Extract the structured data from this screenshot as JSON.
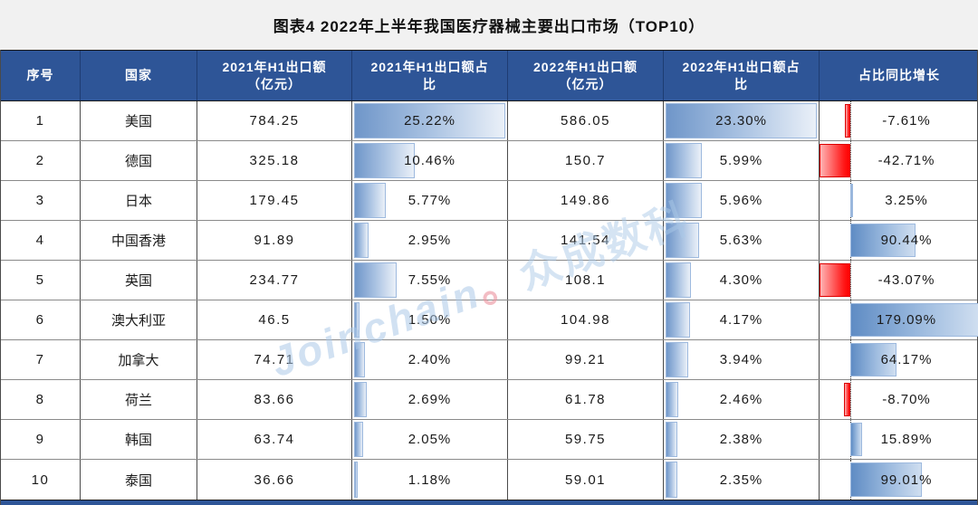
{
  "title": "图表4  2022年上半年我国医疗器械主要出口市场（TOP10）",
  "watermark": {
    "latin": "Joinchain",
    "separator": "。",
    "cjk": "众成数科"
  },
  "colors": {
    "header_bg": "#2e5597",
    "header_text": "#ffffff",
    "title_bar_bg": "#f1f1f1",
    "bar_blue": "#6f96c9",
    "bar_blue_light": "#eaf0f8",
    "bar_blue_border": "#9db9de",
    "bar_red": "#ff0000",
    "bar_red_light": "#ffb3b3",
    "grid_line": "#8a8a8a",
    "footer_bar": "#2e5597"
  },
  "chart_data": {
    "type": "table",
    "title": "图表4  2022年上半年我国医疗器械主要出口市场（TOP10）",
    "columns": [
      {
        "key": "index",
        "label": "序号",
        "label2": ""
      },
      {
        "key": "country",
        "label": "国家",
        "label2": ""
      },
      {
        "key": "export_2021",
        "label": "2021年H1出口额",
        "label2": "（亿元）"
      },
      {
        "key": "share_2021",
        "label": "2021年H1出口额占",
        "label2": "比"
      },
      {
        "key": "export_2022",
        "label": "2022年H1出口额",
        "label2": "（亿元）"
      },
      {
        "key": "share_2022",
        "label": "2022年H1出口额占",
        "label2": "比"
      },
      {
        "key": "growth",
        "label": "占比同比增长",
        "label2": ""
      }
    ],
    "rows": [
      {
        "index": "1",
        "country": "美国",
        "export_2021": "784.25",
        "share_2021_pct": 25.22,
        "export_2022": "586.05",
        "share_2022_pct": 23.3,
        "share_growth_pct": -7.61
      },
      {
        "index": "2",
        "country": "德国",
        "export_2021": "325.18",
        "share_2021_pct": 10.46,
        "export_2022": "150.7",
        "share_2022_pct": 5.99,
        "share_growth_pct": -42.71
      },
      {
        "index": "3",
        "country": "日本",
        "export_2021": "179.45",
        "share_2021_pct": 5.77,
        "export_2022": "149.86",
        "share_2022_pct": 5.96,
        "share_growth_pct": 3.25
      },
      {
        "index": "4",
        "country": "中国香港",
        "export_2021": "91.89",
        "share_2021_pct": 2.95,
        "export_2022": "141.54",
        "share_2022_pct": 5.63,
        "share_growth_pct": 90.44
      },
      {
        "index": "5",
        "country": "英国",
        "export_2021": "234.77",
        "share_2021_pct": 7.55,
        "export_2022": "108.1",
        "share_2022_pct": 4.3,
        "share_growth_pct": -43.07
      },
      {
        "index": "6",
        "country": "澳大利亚",
        "export_2021": "46.5",
        "share_2021_pct": 1.5,
        "export_2022": "104.98",
        "share_2022_pct": 4.17,
        "share_growth_pct": 179.09
      },
      {
        "index": "7",
        "country": "加拿大",
        "export_2021": "74.71",
        "share_2021_pct": 2.4,
        "export_2022": "99.21",
        "share_2022_pct": 3.94,
        "share_growth_pct": 64.17
      },
      {
        "index": "8",
        "country": "荷兰",
        "export_2021": "83.66",
        "share_2021_pct": 2.69,
        "export_2022": "61.78",
        "share_2022_pct": 2.46,
        "share_growth_pct": -8.7
      },
      {
        "index": "9",
        "country": "韩国",
        "export_2021": "63.74",
        "share_2021_pct": 2.05,
        "export_2022": "59.75",
        "share_2022_pct": 2.38,
        "share_growth_pct": 15.89
      },
      {
        "index": "10",
        "country": "泰国",
        "export_2021": "36.66",
        "share_2021_pct": 1.18,
        "export_2022": "59.01",
        "share_2022_pct": 2.35,
        "share_growth_pct": 99.01
      }
    ],
    "databars": {
      "share_2021": {
        "min": 0,
        "max": 25.22,
        "style": "blue-gradient"
      },
      "share_2022": {
        "min": 0,
        "max": 23.3,
        "style": "blue-gradient"
      },
      "growth": {
        "min": -43.07,
        "max": 179.09,
        "positive_style": "blue-gradient",
        "negative_style": "red-gradient",
        "zero_axis": "dotted"
      }
    }
  }
}
